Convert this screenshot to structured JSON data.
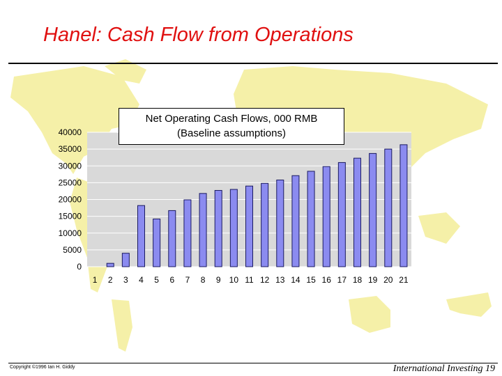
{
  "slide": {
    "title": "Hanel: Cash Flow from Operations",
    "copyright": "Copyright ©1996 Ian H. Giddy",
    "footer_right": "International Investing 19"
  },
  "colors": {
    "title": "#e01010",
    "bar_fill": "#8b8bf0",
    "bar_stroke": "#1a1a60",
    "plot_bg": "#d9d9d9",
    "map": "#f5f0a8"
  },
  "chart_data": {
    "type": "bar",
    "title_line1": "Net Operating Cash Flows, 000 RMB",
    "title_line2": "(Baseline assumptions)",
    "categories": [
      "1",
      "2",
      "3",
      "4",
      "5",
      "6",
      "7",
      "8",
      "9",
      "10",
      "11",
      "12",
      "13",
      "14",
      "15",
      "16",
      "17",
      "18",
      "19",
      "20",
      "21"
    ],
    "values": [
      0,
      1000,
      4000,
      18200,
      14200,
      16700,
      19900,
      21800,
      22700,
      23000,
      24000,
      24800,
      25800,
      27100,
      28400,
      29800,
      31000,
      32300,
      33700,
      35000,
      36300
    ],
    "yticks": [
      0,
      5000,
      10000,
      15000,
      20000,
      25000,
      30000,
      35000,
      40000
    ],
    "ylim": [
      0,
      40000
    ],
    "grid": true,
    "legend": "none"
  }
}
